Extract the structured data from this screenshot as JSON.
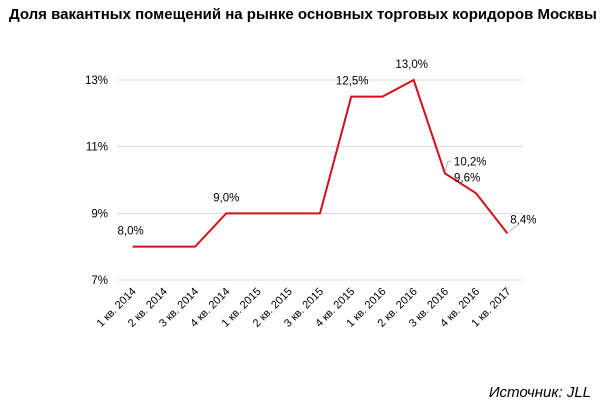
{
  "chart_data": {
    "type": "line",
    "title": "Доля вакантных помещений на рынке основных торговых коридоров Москвы",
    "categories": [
      "1 кв. 2014",
      "2 кв. 2014",
      "3 кв. 2014",
      "4 кв. 2014",
      "1 кв. 2015",
      "2 кв. 2015",
      "3 кв. 2015",
      "4 кв. 2015",
      "1 кв. 2016",
      "2 кв. 2016",
      "3 кв. 2016",
      "4 кв. 2016",
      "1 кв. 2017"
    ],
    "series": [
      {
        "values": [
          8.0,
          8.0,
          8.0,
          9.0,
          9.0,
          9.0,
          9.0,
          12.5,
          12.5,
          13.0,
          10.2,
          9.6,
          8.4
        ],
        "color": "#d0101b"
      }
    ],
    "data_labels": [
      {
        "index": 0,
        "text": "8,0%"
      },
      {
        "index": 3,
        "text": "9,0%"
      },
      {
        "index": 7,
        "text": "12,5%"
      },
      {
        "index": 9,
        "text": "13,0%"
      },
      {
        "index": 10,
        "text": "10,2%"
      },
      {
        "index": 11,
        "text": "9,6%"
      },
      {
        "index": 12,
        "text": "8,4%"
      }
    ],
    "yticks": [
      7,
      9,
      11,
      13
    ],
    "ytick_labels": [
      "7%",
      "9%",
      "11%",
      "13%"
    ],
    "ylim": [
      7,
      13
    ],
    "grid": true,
    "legend": "none",
    "source": "Источник: JLL"
  }
}
